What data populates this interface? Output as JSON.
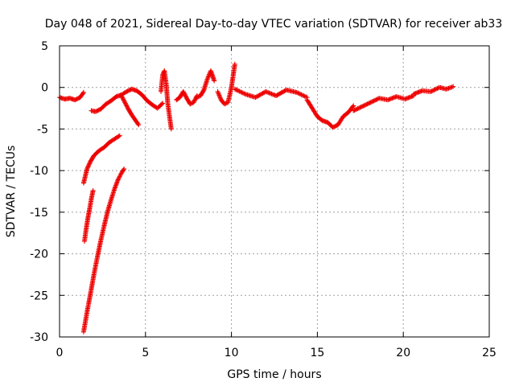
{
  "chart_data": {
    "type": "scatter",
    "title": "Day 048 of 2021, Sidereal Day-to-day VTEC variation (SDTVAR) for receiver ab33",
    "xlabel": "GPS time / hours",
    "ylabel": "SDTVAR / TECUs",
    "xlim": [
      0,
      25
    ],
    "ylim": [
      -30,
      5
    ],
    "xticks": [
      0,
      5,
      10,
      15,
      20,
      25
    ],
    "yticks": [
      5,
      0,
      -5,
      -10,
      -15,
      -20,
      -25,
      -30
    ],
    "grid": true,
    "marker": "+",
    "color": "#ee0000",
    "series": [
      {
        "name": "SDTVAR",
        "segments": [
          {
            "x": [
              0.0,
              0.3,
              0.6,
              0.9,
              1.2,
              1.4
            ],
            "y": [
              -1.2,
              -1.4,
              -1.3,
              -1.5,
              -1.2,
              -0.6
            ]
          },
          {
            "x": [
              1.85,
              2.1,
              2.4,
              2.7,
              3.0,
              3.3,
              3.6
            ],
            "y": [
              -2.8,
              -2.9,
              -2.6,
              -2.0,
              -1.6,
              -1.1,
              -0.9
            ]
          },
          {
            "x": [
              3.6,
              3.9,
              4.2,
              4.5,
              4.8,
              5.1,
              5.4,
              5.7,
              6.0
            ],
            "y": [
              -0.9,
              -0.5,
              -0.2,
              -0.4,
              -0.9,
              -1.6,
              -2.1,
              -2.5,
              -1.9
            ]
          },
          {
            "x": [
              3.6,
              3.8,
              4.0,
              4.2,
              4.4,
              4.6
            ],
            "y": [
              -1.0,
              -1.8,
              -2.6,
              -3.3,
              -3.9,
              -4.5
            ]
          },
          {
            "x": [
              5.9,
              6.0,
              6.1,
              6.2,
              6.3,
              6.4,
              6.5
            ],
            "y": [
              -0.5,
              1.5,
              2.0,
              0.5,
              -2.0,
              -3.5,
              -5.0
            ]
          },
          {
            "x": [
              6.8,
              7.0,
              7.2,
              7.4,
              7.6,
              7.8,
              8.0
            ],
            "y": [
              -1.5,
              -1.2,
              -0.5,
              -1.3,
              -2.0,
              -1.8,
              -1.0
            ]
          },
          {
            "x": [
              8.0,
              8.2,
              8.4,
              8.6,
              8.8,
              9.0
            ],
            "y": [
              -1.2,
              -1.0,
              -0.3,
              1.0,
              2.0,
              0.8
            ]
          },
          {
            "x": [
              9.2,
              9.4,
              9.6,
              9.8,
              10.0,
              10.2
            ],
            "y": [
              -0.5,
              -1.5,
              -2.0,
              -1.8,
              0.0,
              2.8
            ]
          },
          {
            "x": [
              10.2,
              10.8,
              11.4,
              12.0,
              12.6,
              13.2,
              13.8,
              14.4
            ],
            "y": [
              -0.2,
              -0.8,
              -1.2,
              -0.5,
              -1.0,
              -0.3,
              -0.6,
              -1.2
            ]
          },
          {
            "x": [
              14.4,
              14.7,
              15.0,
              15.3,
              15.6,
              15.9,
              16.2,
              16.5,
              16.8,
              17.1
            ],
            "y": [
              -1.5,
              -2.5,
              -3.5,
              -4.0,
              -4.2,
              -4.8,
              -4.5,
              -3.5,
              -3.0,
              -2.2
            ]
          },
          {
            "x": [
              17.1,
              17.6,
              18.1,
              18.6,
              19.1,
              19.6,
              20.1,
              20.6
            ],
            "y": [
              -2.8,
              -2.3,
              -1.8,
              -1.3,
              -1.5,
              -1.1,
              -1.4,
              -1.0
            ]
          },
          {
            "x": [
              20.6,
              21.1,
              21.6,
              22.1,
              22.5,
              22.9
            ],
            "y": [
              -0.8,
              -0.4,
              -0.5,
              0.0,
              -0.2,
              0.1
            ]
          },
          {
            "x": [
              1.4,
              1.6,
              1.8,
              2.0,
              2.2,
              2.4,
              2.6,
              2.8,
              3.0,
              3.2,
              3.4,
              3.6,
              3.75
            ],
            "y": [
              -29.4,
              -27.0,
              -24.8,
              -22.5,
              -20.4,
              -18.4,
              -16.6,
              -14.9,
              -13.5,
              -12.2,
              -11.1,
              -10.3,
              -9.8
            ]
          },
          {
            "x": [
              1.45,
              1.55,
              1.65,
              1.75,
              1.85,
              1.95
            ],
            "y": [
              -18.5,
              -17.0,
              -15.7,
              -14.6,
              -13.4,
              -12.4
            ]
          },
          {
            "x": [
              1.4,
              1.6,
              1.8,
              2.0,
              2.3,
              2.6,
              2.9,
              3.2,
              3.5
            ],
            "y": [
              -11.5,
              -9.8,
              -8.9,
              -8.2,
              -7.6,
              -7.2,
              -6.6,
              -6.2,
              -5.8
            ]
          }
        ]
      }
    ]
  }
}
